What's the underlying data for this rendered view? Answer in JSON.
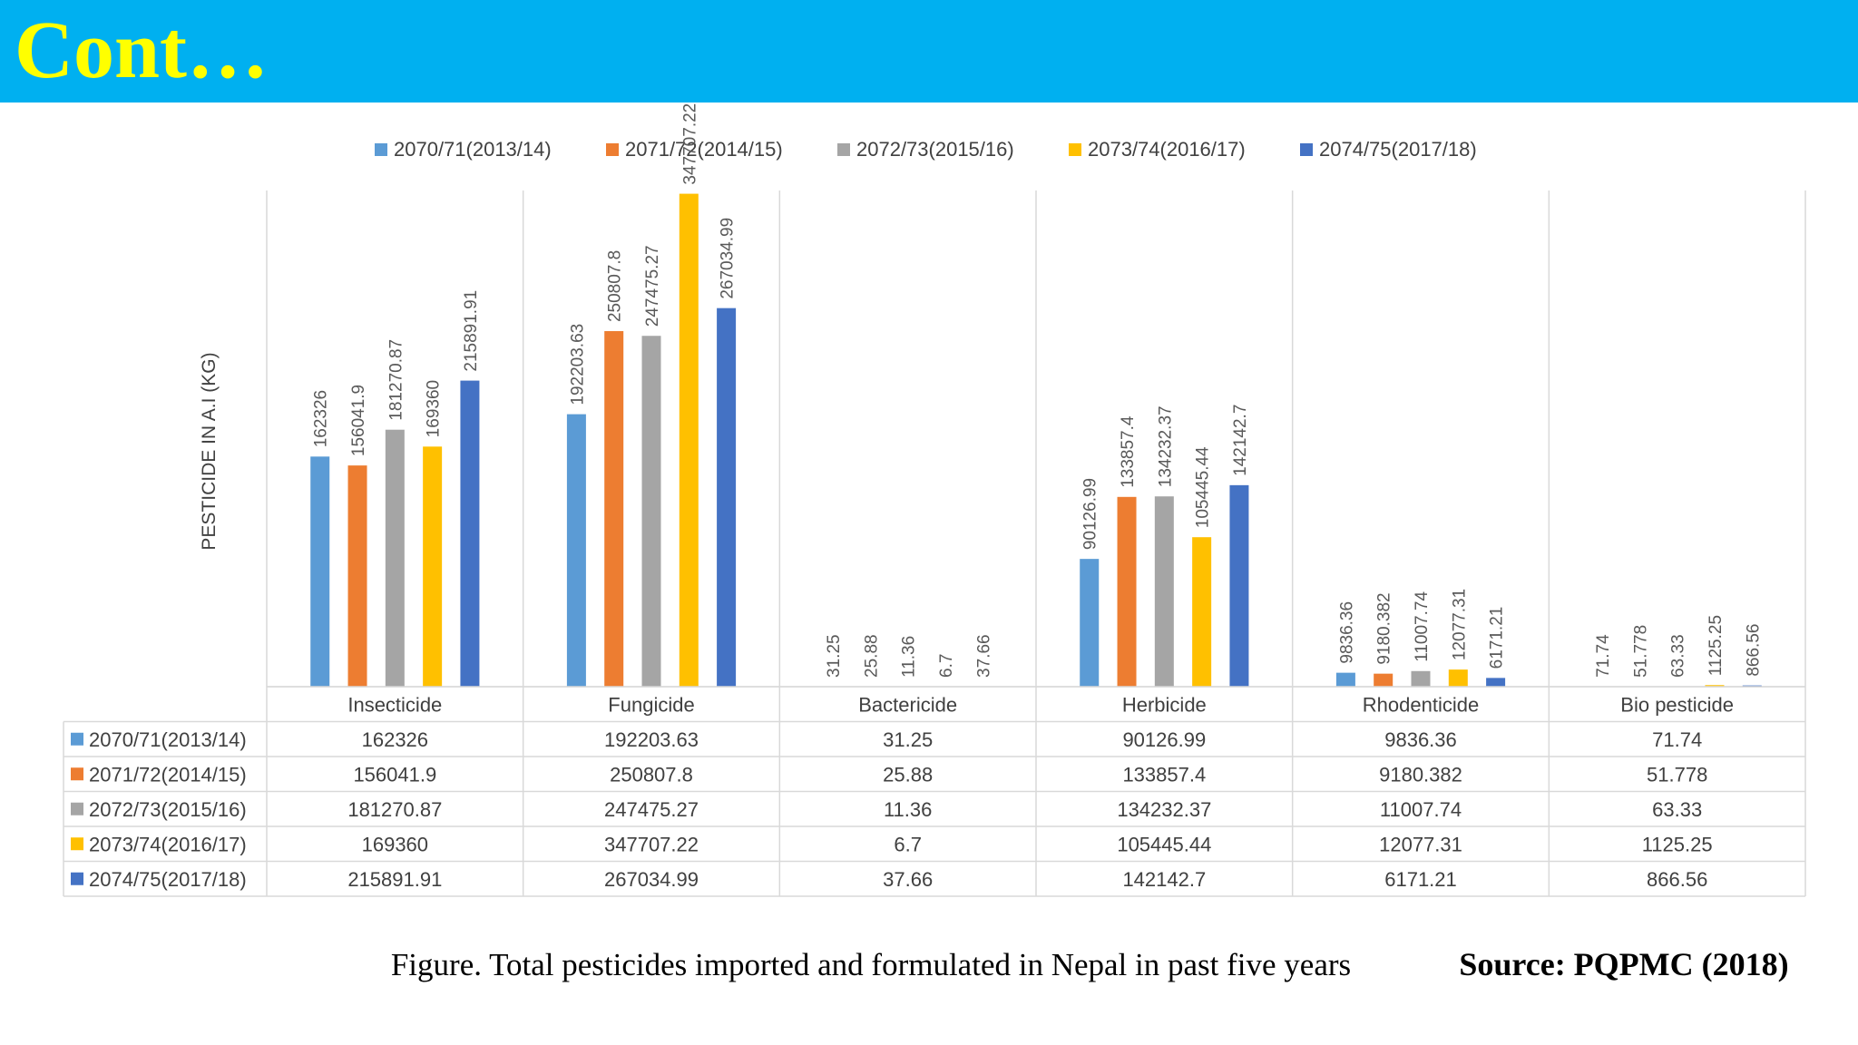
{
  "header": {
    "title": "Cont…",
    "background": "#00b0f0",
    "title_color": "#ffff00"
  },
  "chart_data": {
    "type": "bar",
    "ylabel": "PESTICIDE IN A.I (KG)",
    "ylim": [
      0,
      350000
    ],
    "grid": false,
    "legend_position": "top",
    "categories": [
      "Insecticide",
      "Fungicide",
      "Bactericide",
      "Herbicide",
      "Rhodenticide",
      "Bio pesticide"
    ],
    "series": [
      {
        "name": "2070/71(2013/14)",
        "color": "#5b9bd5",
        "values": [
          162326,
          192203.63,
          31.25,
          90126.99,
          9836.36,
          71.74
        ]
      },
      {
        "name": "2071/72(2014/15)",
        "color": "#ed7d31",
        "values": [
          156041.9,
          250807.8,
          25.88,
          133857.4,
          9180.382,
          51.778
        ]
      },
      {
        "name": "2072/73(2015/16)",
        "color": "#a5a5a5",
        "values": [
          181270.87,
          247475.27,
          11.36,
          134232.37,
          11007.74,
          63.33
        ]
      },
      {
        "name": "2073/74(2016/17)",
        "color": "#ffc000",
        "values": [
          169360,
          347707.22,
          6.7,
          105445.44,
          12077.31,
          1125.25
        ]
      },
      {
        "name": "2074/75(2017/18)",
        "color": "#4472c4",
        "values": [
          215891.91,
          267034.99,
          37.66,
          142142.7,
          6171.21,
          866.56
        ]
      }
    ],
    "data_table": true
  },
  "caption": "Figure. Total pesticides imported and formulated in Nepal in past five years",
  "source": "Source: PQPMC (2018)"
}
